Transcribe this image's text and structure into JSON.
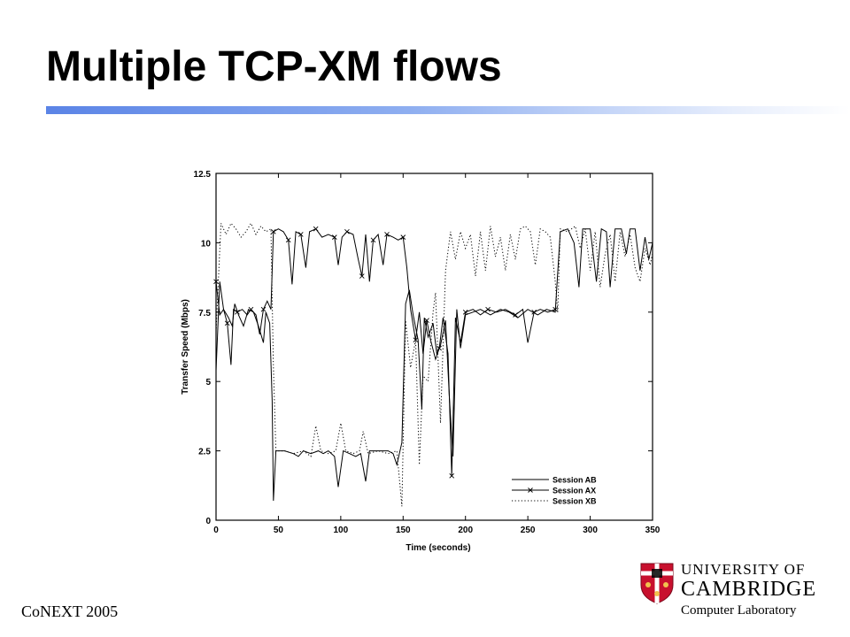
{
  "slide": {
    "title": "Multiple TCP-XM flows",
    "footer": "CoNEXT 2005"
  },
  "logo": {
    "line1": "UNIVERSITY OF",
    "line2": "CAMBRIDGE",
    "line3": "Computer Laboratory"
  },
  "chart_data": {
    "type": "line",
    "xlabel": "Time (seconds)",
    "ylabel": "Transfer Speed (Mbps)",
    "xlim": [
      0,
      350
    ],
    "ylim": [
      0,
      12.5
    ],
    "xticks": [
      0,
      50,
      100,
      150,
      200,
      250,
      300,
      350
    ],
    "yticks": [
      0,
      2.5,
      5,
      7.5,
      10,
      12.5
    ],
    "xtick_labels": [
      "0",
      "50",
      "100",
      "150",
      "200",
      "250",
      "300",
      "350"
    ],
    "ytick_labels": [
      "0",
      "2.5",
      "5",
      "7.5",
      "10",
      "12.5"
    ],
    "legend_position": "bottom-right",
    "grid": false,
    "series": [
      {
        "name": "Session AB",
        "style": "solid",
        "points": [
          [
            0,
            5.4
          ],
          [
            3,
            8.6
          ],
          [
            6,
            7.6
          ],
          [
            10,
            7.3
          ],
          [
            13,
            7.0
          ],
          [
            15,
            7.8
          ],
          [
            18,
            7.4
          ],
          [
            22,
            7.0
          ],
          [
            26,
            7.6
          ],
          [
            30,
            7.5
          ],
          [
            34,
            7.0
          ],
          [
            38,
            6.4
          ],
          [
            40,
            7.5
          ],
          [
            43,
            7.1
          ],
          [
            45,
            4.3
          ],
          [
            46,
            0.7
          ],
          [
            48,
            2.5
          ],
          [
            55,
            2.5
          ],
          [
            62,
            2.4
          ],
          [
            66,
            2.3
          ],
          [
            70,
            2.5
          ],
          [
            76,
            2.4
          ],
          [
            82,
            2.5
          ],
          [
            86,
            2.4
          ],
          [
            90,
            2.5
          ],
          [
            95,
            2.3
          ],
          [
            98,
            1.2
          ],
          [
            102,
            2.5
          ],
          [
            107,
            2.4
          ],
          [
            112,
            2.3
          ],
          [
            116,
            2.4
          ],
          [
            120,
            1.4
          ],
          [
            123,
            2.5
          ],
          [
            130,
            2.5
          ],
          [
            138,
            2.5
          ],
          [
            142,
            2.4
          ],
          [
            145,
            2.0
          ],
          [
            149,
            2.8
          ],
          [
            152,
            7.8
          ],
          [
            155,
            8.3
          ],
          [
            158,
            7.4
          ],
          [
            162,
            6.5
          ],
          [
            165,
            4.0
          ],
          [
            167,
            7.3
          ],
          [
            170,
            6.6
          ],
          [
            174,
            7.1
          ],
          [
            177,
            6.0
          ],
          [
            180,
            6.3
          ],
          [
            184,
            7.2
          ],
          [
            187,
            4.5
          ],
          [
            190,
            2.3
          ],
          [
            193,
            7.6
          ],
          [
            196,
            6.2
          ],
          [
            200,
            7.4
          ],
          [
            206,
            7.5
          ],
          [
            212,
            7.6
          ],
          [
            220,
            7.4
          ],
          [
            228,
            7.6
          ],
          [
            235,
            7.5
          ],
          [
            242,
            7.3
          ],
          [
            250,
            7.6
          ],
          [
            258,
            7.4
          ],
          [
            265,
            7.6
          ],
          [
            272,
            7.5
          ],
          [
            276,
            10.4
          ],
          [
            282,
            10.5
          ],
          [
            287,
            10.0
          ],
          [
            291,
            8.4
          ],
          [
            294,
            10.5
          ],
          [
            300,
            10.5
          ],
          [
            305,
            8.6
          ],
          [
            309,
            10.5
          ],
          [
            313,
            10.4
          ],
          [
            316,
            8.4
          ],
          [
            320,
            10.5
          ],
          [
            325,
            10.5
          ],
          [
            329,
            9.6
          ],
          [
            332,
            10.5
          ],
          [
            336,
            10.5
          ],
          [
            340,
            9.0
          ],
          [
            344,
            10.2
          ],
          [
            347,
            9.4
          ],
          [
            350,
            10.0
          ]
        ]
      },
      {
        "name": "Session AX",
        "style": "solid-x",
        "points": [
          [
            0,
            8.6
          ],
          [
            3,
            7.4
          ],
          [
            6,
            7.6
          ],
          [
            9,
            7.1
          ],
          [
            12,
            5.6
          ],
          [
            14,
            7.6
          ],
          [
            17,
            7.5
          ],
          [
            21,
            7.6
          ],
          [
            25,
            7.4
          ],
          [
            28,
            7.6
          ],
          [
            32,
            7.4
          ],
          [
            35,
            6.7
          ],
          [
            38,
            7.6
          ],
          [
            41,
            7.9
          ],
          [
            44,
            7.6
          ],
          [
            46,
            10.4
          ],
          [
            50,
            10.5
          ],
          [
            54,
            10.4
          ],
          [
            58,
            10.1
          ],
          [
            61,
            8.5
          ],
          [
            64,
            10.4
          ],
          [
            68,
            10.3
          ],
          [
            72,
            9.1
          ],
          [
            75,
            10.4
          ],
          [
            80,
            10.5
          ],
          [
            85,
            10.2
          ],
          [
            90,
            10.3
          ],
          [
            95,
            10.2
          ],
          [
            98,
            9.2
          ],
          [
            101,
            10.2
          ],
          [
            105,
            10.4
          ],
          [
            110,
            10.3
          ],
          [
            114,
            9.4
          ],
          [
            117,
            8.8
          ],
          [
            120,
            10.3
          ],
          [
            123,
            8.6
          ],
          [
            126,
            10.1
          ],
          [
            130,
            10.3
          ],
          [
            134,
            9.2
          ],
          [
            137,
            10.3
          ],
          [
            142,
            10.2
          ],
          [
            146,
            10.1
          ],
          [
            150,
            10.2
          ],
          [
            153,
            9.1
          ],
          [
            156,
            7.6
          ],
          [
            160,
            6.5
          ],
          [
            163,
            7.5
          ],
          [
            166,
            6.0
          ],
          [
            169,
            7.2
          ],
          [
            172,
            6.5
          ],
          [
            176,
            5.8
          ],
          [
            179,
            6.2
          ],
          [
            182,
            7.3
          ],
          [
            186,
            6.0
          ],
          [
            189,
            1.6
          ],
          [
            192,
            7.3
          ],
          [
            196,
            6.4
          ],
          [
            200,
            7.5
          ],
          [
            206,
            7.6
          ],
          [
            212,
            7.4
          ],
          [
            218,
            7.6
          ],
          [
            225,
            7.5
          ],
          [
            232,
            7.6
          ],
          [
            240,
            7.4
          ],
          [
            246,
            7.6
          ],
          [
            250,
            6.4
          ],
          [
            255,
            7.5
          ],
          [
            260,
            7.6
          ],
          [
            266,
            7.5
          ],
          [
            272,
            7.6
          ]
        ]
      },
      {
        "name": "Session XB",
        "style": "dotted",
        "points": [
          [
            0,
            6.8
          ],
          [
            4,
            10.7
          ],
          [
            8,
            10.3
          ],
          [
            12,
            10.7
          ],
          [
            16,
            10.5
          ],
          [
            20,
            10.2
          ],
          [
            24,
            10.4
          ],
          [
            28,
            10.7
          ],
          [
            32,
            10.3
          ],
          [
            36,
            10.6
          ],
          [
            40,
            10.4
          ],
          [
            44,
            10.5
          ],
          [
            46,
            5.5
          ],
          [
            48,
            2.5
          ],
          [
            55,
            2.5
          ],
          [
            62,
            2.4
          ],
          [
            70,
            2.5
          ],
          [
            76,
            2.3
          ],
          [
            80,
            3.4
          ],
          [
            84,
            2.5
          ],
          [
            90,
            2.4
          ],
          [
            96,
            2.5
          ],
          [
            100,
            3.5
          ],
          [
            104,
            2.5
          ],
          [
            110,
            2.4
          ],
          [
            115,
            2.5
          ],
          [
            118,
            3.2
          ],
          [
            122,
            2.4
          ],
          [
            130,
            2.5
          ],
          [
            138,
            2.4
          ],
          [
            145,
            2.5
          ],
          [
            149,
            0.5
          ],
          [
            152,
            7.2
          ],
          [
            156,
            5.5
          ],
          [
            160,
            6.5
          ],
          [
            163,
            2.0
          ],
          [
            166,
            5.2
          ],
          [
            170,
            5.0
          ],
          [
            174,
            7.5
          ],
          [
            176,
            8.2
          ],
          [
            180,
            3.5
          ],
          [
            184,
            9.0
          ],
          [
            188,
            10.4
          ],
          [
            192,
            9.4
          ],
          [
            196,
            10.4
          ],
          [
            200,
            9.8
          ],
          [
            204,
            10.3
          ],
          [
            208,
            8.8
          ],
          [
            212,
            10.4
          ],
          [
            216,
            9.0
          ],
          [
            220,
            10.6
          ],
          [
            224,
            9.5
          ],
          [
            228,
            10.2
          ],
          [
            232,
            9.0
          ],
          [
            236,
            10.3
          ],
          [
            240,
            9.4
          ],
          [
            244,
            10.5
          ],
          [
            248,
            10.6
          ],
          [
            252,
            10.4
          ],
          [
            256,
            9.2
          ],
          [
            260,
            10.5
          ],
          [
            264,
            10.4
          ],
          [
            268,
            10.2
          ],
          [
            272,
            8.6
          ],
          [
            274,
            7.5
          ],
          [
            276,
            10.5
          ],
          [
            282,
            10.4
          ],
          [
            288,
            10.6
          ],
          [
            292,
            9.8
          ],
          [
            296,
            10.5
          ],
          [
            300,
            9.0
          ],
          [
            304,
            10.4
          ],
          [
            308,
            8.4
          ],
          [
            312,
            9.6
          ],
          [
            316,
            10.3
          ],
          [
            320,
            8.6
          ],
          [
            324,
            10.4
          ],
          [
            328,
            9.5
          ],
          [
            332,
            10.3
          ],
          [
            336,
            9.1
          ],
          [
            340,
            8.6
          ],
          [
            344,
            9.8
          ],
          [
            348,
            9.2
          ],
          [
            350,
            9.6
          ]
        ]
      }
    ]
  }
}
